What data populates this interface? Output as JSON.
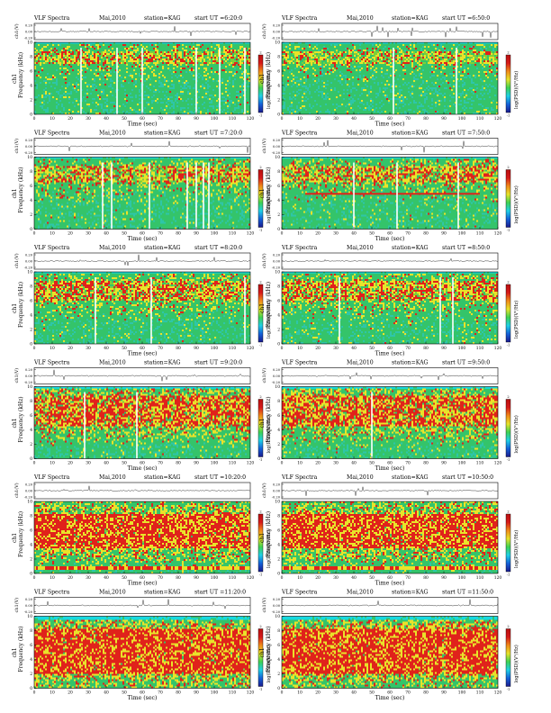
{
  "figure": {
    "colors": {
      "background_cyan": "#17d9e0",
      "low_green": "#34c46a",
      "mid_yellow": "#e9e32a",
      "high_red": "#e0221b",
      "colorbar_stops": [
        "#1a1a8c",
        "#1560d8",
        "#1fd0e6",
        "#3ed152",
        "#e6e22a",
        "#f08a1a",
        "#d61a1a",
        "#b81010"
      ]
    }
  },
  "chart_data": [
    {
      "type": "heatmap",
      "title": "VLF Spectra",
      "date": "Mai,2010",
      "station": "station=KAG",
      "start": "start UT =6:20:0",
      "top_ylabel": "ch1(V)",
      "top_ticks": [
        "0.20",
        "0.00",
        "-0.20"
      ],
      "ylabel_channel": "ch1",
      "ylabel": "Frequency (kHz)",
      "xlabel": "Time (sec)",
      "xlim": [
        0,
        120
      ],
      "ylim": [
        0,
        10
      ],
      "x_ticks": [
        "0",
        "10",
        "20",
        "30",
        "40",
        "50",
        "60",
        "70",
        "80",
        "90",
        "100",
        "110",
        "120"
      ],
      "y_ticks": [
        "0",
        "2",
        "4",
        "6",
        "8",
        "10"
      ],
      "colorbar_label": "log(PSD)(V²/Hz)",
      "colorbar_ticks": [
        "2",
        "-1"
      ],
      "cyan_top_khz": 9.8,
      "red_band_khz": [
        7.0,
        8.8
      ],
      "intensity": 0.35,
      "dropouts_sec": [
        26,
        46,
        60,
        90,
        103,
        117
      ]
    },
    {
      "type": "heatmap",
      "title": "VLF Spectra",
      "date": "Mai,2010",
      "station": "station=KAG",
      "start": "start UT =6:50:0",
      "top_ylabel": "ch1(V)",
      "top_ticks": [
        "0.20",
        "0.00",
        "-0.20"
      ],
      "ylabel_channel": "ch1",
      "ylabel": "Frequency (kHz)",
      "xlabel": "Time (sec)",
      "xlim": [
        0,
        120
      ],
      "ylim": [
        0,
        10
      ],
      "x_ticks": [
        "0",
        "10",
        "20",
        "30",
        "40",
        "50",
        "60",
        "70",
        "80",
        "90",
        "100",
        "110",
        "120"
      ],
      "y_ticks": [
        "0",
        "2",
        "4",
        "6",
        "8",
        "10"
      ],
      "colorbar_label": "log(PSD)(V²/Hz)",
      "colorbar_ticks": [
        "2",
        "-1"
      ],
      "cyan_top_khz": 9.8,
      "red_band_khz": [
        7.0,
        8.8
      ],
      "intensity": 0.25,
      "dropouts_sec": [
        62,
        97
      ]
    },
    {
      "type": "heatmap",
      "title": "VLF Spectra",
      "date": "Mai,2010",
      "station": "station=KAG",
      "start": "start UT =7:20:0",
      "top_ylabel": "ch1(V)",
      "top_ticks": [
        "0.20",
        "0.00",
        "-0.20"
      ],
      "ylabel_channel": "ch1",
      "ylabel": "Frequency (kHz)",
      "xlabel": "Time (sec)",
      "xlim": [
        0,
        120
      ],
      "ylim": [
        0,
        10
      ],
      "x_ticks": [
        "0",
        "10",
        "20",
        "30",
        "40",
        "50",
        "60",
        "70",
        "80",
        "90",
        "100",
        "110",
        "120"
      ],
      "y_ticks": [
        "0",
        "2",
        "4",
        "6",
        "8",
        "10"
      ],
      "colorbar_label": "log(PSD)(V²/Hz)",
      "colorbar_ticks": [
        "2",
        "-1"
      ],
      "cyan_top_khz": 9.8,
      "red_band_khz": [
        6.5,
        8.8
      ],
      "intensity": 0.4,
      "dropouts_sec": [
        38,
        43,
        64,
        85,
        90,
        94,
        97
      ]
    },
    {
      "type": "heatmap",
      "title": "VLF Spectra",
      "date": "Mai,2010",
      "station": "station=KAG",
      "start": "start UT =7:50:0",
      "top_ylabel": "ch1(V)",
      "top_ticks": [
        "0.20",
        "0.00",
        "-0.20"
      ],
      "ylabel_channel": "ch1",
      "ylabel": "Frequency (kHz)",
      "xlabel": "Time (sec)",
      "xlim": [
        0,
        120
      ],
      "ylim": [
        0,
        10
      ],
      "x_ticks": [
        "0",
        "10",
        "20",
        "30",
        "40",
        "50",
        "60",
        "70",
        "80",
        "90",
        "100",
        "110",
        "120"
      ],
      "y_ticks": [
        "0",
        "2",
        "4",
        "6",
        "8",
        "10"
      ],
      "colorbar_label": "log(PSD)(V²/Hz)",
      "colorbar_ticks": [
        "2",
        "-1"
      ],
      "cyan_top_khz": 9.8,
      "red_band_khz": [
        6.5,
        8.8
      ],
      "intensity": 0.45,
      "dropouts_sec": [
        40,
        64,
        98
      ],
      "horizontal_line": {
        "khz": 4.9,
        "from_sec": 13,
        "to_sec": 110
      }
    },
    {
      "type": "heatmap",
      "title": "VLF Spectra",
      "date": "Mai,2010",
      "station": "station=KAG",
      "start": "start UT =8:20:0",
      "top_ylabel": "ch1(V)",
      "top_ticks": [
        "0.20",
        "0.00",
        "-0.20"
      ],
      "ylabel_channel": "ch1",
      "ylabel": "Frequency (kHz)",
      "xlabel": "Time (sec)",
      "xlim": [
        0,
        120
      ],
      "ylim": [
        0,
        10
      ],
      "x_ticks": [
        "0",
        "10",
        "20",
        "30",
        "40",
        "50",
        "60",
        "70",
        "80",
        "90",
        "100",
        "110",
        "120"
      ],
      "y_ticks": [
        "0",
        "2",
        "4",
        "6",
        "8",
        "10"
      ],
      "colorbar_label": "log(PSD)(V²/Hz)",
      "colorbar_ticks": [
        "2",
        "-1"
      ],
      "cyan_top_khz": 9.8,
      "red_band_khz": [
        6.0,
        8.8
      ],
      "intensity": 0.45,
      "dropouts_sec": [
        34,
        65,
        117
      ]
    },
    {
      "type": "heatmap",
      "title": "VLF Spectra",
      "date": "Mai,2010",
      "station": "station=KAG",
      "start": "start UT =8:50:0",
      "top_ylabel": "ch1(V)",
      "top_ticks": [
        "0.20",
        "0.00",
        "-0.20"
      ],
      "ylabel_channel": "ch1",
      "ylabel": "Frequency (kHz)",
      "xlabel": "Time (sec)",
      "xlim": [
        0,
        120
      ],
      "ylim": [
        0,
        10
      ],
      "x_ticks": [
        "0",
        "10",
        "20",
        "30",
        "40",
        "50",
        "60",
        "70",
        "80",
        "90",
        "100",
        "110",
        "120"
      ],
      "y_ticks": [
        "0",
        "2",
        "4",
        "6",
        "8",
        "10"
      ],
      "colorbar_label": "log(PSD)(V²/Hz)",
      "colorbar_ticks": [
        "2",
        "-1"
      ],
      "cyan_top_khz": 9.8,
      "red_band_khz": [
        6.0,
        8.8
      ],
      "intensity": 0.45,
      "dropouts_sec": [
        32,
        88,
        95
      ]
    },
    {
      "type": "heatmap",
      "title": "VLF Spectra",
      "date": "Mai,2010",
      "station": "station=KAG",
      "start": "start UT =9:20:0",
      "top_ylabel": "ch1(V)",
      "top_ticks": [
        "0.20",
        "0.00",
        "-0.20"
      ],
      "ylabel_channel": "ch1",
      "ylabel": "Frequency (kHz)",
      "xlabel": "Time (sec)",
      "xlim": [
        0,
        120
      ],
      "ylim": [
        0,
        10
      ],
      "x_ticks": [
        "0",
        "10",
        "20",
        "30",
        "40",
        "50",
        "60",
        "70",
        "80",
        "90",
        "100",
        "110",
        "120"
      ],
      "y_ticks": [
        "0",
        "2",
        "4",
        "6",
        "8",
        "10"
      ],
      "colorbar_label": "log(PSD)(V²/Hz)",
      "colorbar_ticks": [
        "2",
        "-1"
      ],
      "cyan_top_khz": 9.7,
      "red_band_khz": [
        4.5,
        8.8
      ],
      "intensity": 0.65,
      "dropouts_sec": [
        28,
        57
      ]
    },
    {
      "type": "heatmap",
      "title": "VLF Spectra",
      "date": "Mai,2010",
      "station": "station=KAG",
      "start": "start UT =9:50:0",
      "top_ylabel": "ch1(V)",
      "top_ticks": [
        "0.20",
        "0.00",
        "-0.20"
      ],
      "ylabel_channel": "ch1",
      "ylabel": "Frequency (kHz)",
      "xlabel": "Time (sec)",
      "xlim": [
        0,
        120
      ],
      "ylim": [
        0,
        10
      ],
      "x_ticks": [
        "0",
        "10",
        "20",
        "30",
        "40",
        "50",
        "60",
        "70",
        "80",
        "90",
        "100",
        "110",
        "120"
      ],
      "y_ticks": [
        "0",
        "2",
        "4",
        "6",
        "8",
        "10"
      ],
      "colorbar_label": "log(PSD)(V²/Hz)",
      "colorbar_ticks": [
        "2",
        "-1"
      ],
      "cyan_top_khz": 9.7,
      "red_band_khz": [
        4.5,
        8.8
      ],
      "intensity": 0.7,
      "dropouts_sec": [
        50
      ]
    },
    {
      "type": "heatmap",
      "title": "VLF Spectra",
      "date": "Mai,2010",
      "station": "station=KAG",
      "start": "start UT =10:20:0",
      "top_ylabel": "ch1(V)",
      "top_ticks": [
        "0.20",
        "0.00",
        "-0.20"
      ],
      "ylabel_channel": "ch1",
      "ylabel": "Frequency (kHz)",
      "xlabel": "Time (sec)",
      "xlim": [
        0,
        120
      ],
      "ylim": [
        0,
        10
      ],
      "x_ticks": [
        "0",
        "10",
        "20",
        "30",
        "40",
        "50",
        "60",
        "70",
        "80",
        "90",
        "100",
        "110",
        "120"
      ],
      "y_ticks": [
        "0",
        "2",
        "4",
        "6",
        "8",
        "10"
      ],
      "colorbar_label": "log(PSD)(V²/Hz)",
      "colorbar_ticks": [
        "2",
        "-1"
      ],
      "cyan_top_khz": 10.0,
      "red_band_khz": [
        3.5,
        8.2
      ],
      "intensity": 0.85,
      "dropouts_sec": [],
      "low_band": {
        "from_khz": 0.5,
        "to_khz": 1.0
      }
    },
    {
      "type": "heatmap",
      "title": "VLF Spectra",
      "date": "Mai,2010",
      "station": "station=KAG",
      "start": "start UT =10:50:0",
      "top_ylabel": "ch1(V)",
      "top_ticks": [
        "0.20",
        "0.00",
        "-0.20"
      ],
      "ylabel_channel": "ch1",
      "ylabel": "Frequency (kHz)",
      "xlabel": "Time (sec)",
      "xlim": [
        0,
        120
      ],
      "ylim": [
        0,
        10
      ],
      "x_ticks": [
        "0",
        "10",
        "20",
        "30",
        "40",
        "50",
        "60",
        "70",
        "80",
        "90",
        "100",
        "110",
        "120"
      ],
      "y_ticks": [
        "0",
        "2",
        "4",
        "6",
        "8",
        "10"
      ],
      "colorbar_label": "log(PSD)(V²/Hz)",
      "colorbar_ticks": [
        "2",
        "-1"
      ],
      "cyan_top_khz": 10.0,
      "red_band_khz": [
        3.5,
        8.2
      ],
      "intensity": 0.85,
      "dropouts_sec": [],
      "low_band": {
        "from_khz": 0.5,
        "to_khz": 1.0
      }
    },
    {
      "type": "heatmap",
      "title": "VLF Spectra",
      "date": "Mai,2010",
      "station": "station=KAG",
      "start": "start UT =11:20:0",
      "top_ylabel": "ch1(V)",
      "top_ticks": [
        "0.20",
        "0.00",
        "-0.20"
      ],
      "ylabel_channel": "ch1",
      "ylabel": "Frequency (kHz)",
      "xlabel": "Time (sec)",
      "xlim": [
        0,
        120
      ],
      "ylim": [
        0,
        10
      ],
      "x_ticks": [
        "0",
        "10",
        "20",
        "30",
        "40",
        "50",
        "60",
        "70",
        "80",
        "90",
        "100",
        "110",
        "120"
      ],
      "y_ticks": [
        "0",
        "2",
        "4",
        "6",
        "8",
        "10"
      ],
      "colorbar_label": "log(PSD)(V²/Hz)",
      "colorbar_ticks": [
        "2",
        "-1"
      ],
      "cyan_top_khz": 9.5,
      "red_band_khz": [
        2.0,
        8.2
      ],
      "intensity": 0.9,
      "dropouts_sec": []
    },
    {
      "type": "heatmap",
      "title": "VLF Spectra",
      "date": "Mai,2010",
      "station": "station=KAG",
      "start": "start UT =11:50:0",
      "top_ylabel": "ch1(V)",
      "top_ticks": [
        "0.20",
        "0.00",
        "-0.20"
      ],
      "ylabel_channel": "ch1",
      "ylabel": "Frequency (kHz)",
      "xlabel": "Time (sec)",
      "xlim": [
        0,
        120
      ],
      "ylim": [
        0,
        10
      ],
      "x_ticks": [
        "0",
        "10",
        "20",
        "30",
        "40",
        "50",
        "60",
        "70",
        "80",
        "90",
        "100",
        "110",
        "120"
      ],
      "y_ticks": [
        "0",
        "2",
        "4",
        "6",
        "8",
        "10"
      ],
      "colorbar_label": "log(PSD)(V²/Hz)",
      "colorbar_ticks": [
        "2",
        "-1"
      ],
      "cyan_top_khz": 9.5,
      "red_band_khz": [
        2.0,
        8.2
      ],
      "intensity": 0.9,
      "dropouts_sec": []
    }
  ]
}
